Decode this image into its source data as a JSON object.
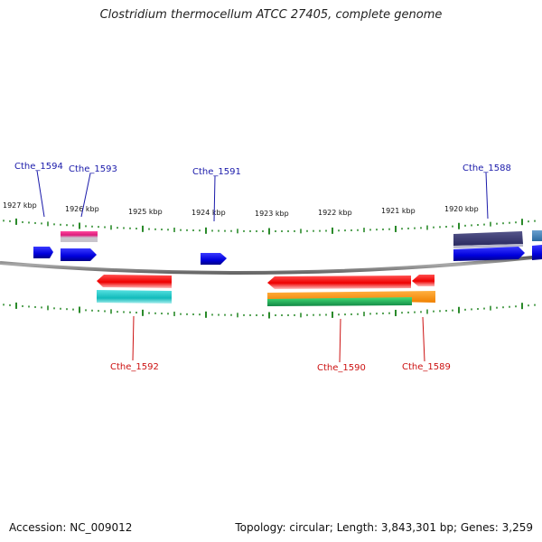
{
  "title": "Clostridium thermocellum ATCC 27405, complete genome",
  "footer": {
    "accession": "Accession: NC_009012",
    "summary": "Topology: circular; Length: 3,843,301 bp; Genes: 3,259"
  },
  "scale_labels": [
    "1927 kbp",
    "1926 kbp",
    "1925 kbp",
    "1924 kbp",
    "1923 kbp",
    "1922 kbp",
    "1921 kbp",
    "1920 kbp"
  ],
  "gene_labels": [
    {
      "id": "Cthe_1594",
      "strand": "forward"
    },
    {
      "id": "Cthe_1593",
      "strand": "forward"
    },
    {
      "id": "Cthe_1591",
      "strand": "forward"
    },
    {
      "id": "Cthe_1588",
      "strand": "forward"
    },
    {
      "id": "Cthe_1592",
      "strand": "reverse"
    },
    {
      "id": "Cthe_1590",
      "strand": "reverse"
    },
    {
      "id": "Cthe_1589",
      "strand": "reverse"
    }
  ],
  "colors": {
    "forward_label": "#1a1aaa",
    "reverse_label": "#cc1111",
    "tick": "#2a8a2a",
    "backbone": "#777777",
    "cds": "#0a0adc",
    "rev_cds": "#ee1111",
    "cyan": "#22cccc",
    "orange": "#ff9a1a",
    "green": "#22bb55",
    "magenta": "#ee2a8a",
    "navy": "#3a3a7a"
  }
}
